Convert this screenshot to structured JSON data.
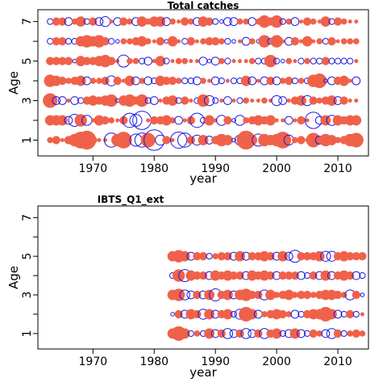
{
  "colors": {
    "positive": "#f0614a",
    "negative": "#1a1ae6",
    "frame": "#000000"
  },
  "chart_data": [
    {
      "type": "scatter",
      "title": "Total catches",
      "xlabel": "year",
      "ylabel": "Age",
      "xlim": [
        1961,
        2015
      ],
      "ylim": [
        0.2,
        7.6
      ],
      "xticks": [
        1970,
        1980,
        1990,
        2000,
        2010
      ],
      "xtick_labels": [
        "1970",
        "1980",
        "1990",
        "2000",
        "2010"
      ],
      "yticks": [
        1,
        2,
        3,
        4,
        5,
        6,
        7
      ],
      "ytick_labels": [
        "1",
        "",
        "3",
        "",
        "5",
        "",
        "7"
      ],
      "grid": false,
      "legend": "none",
      "years": [
        1963,
        1964,
        1965,
        1966,
        1967,
        1968,
        1969,
        1970,
        1971,
        1972,
        1973,
        1974,
        1975,
        1976,
        1977,
        1978,
        1979,
        1980,
        1981,
        1982,
        1983,
        1984,
        1985,
        1986,
        1987,
        1988,
        1989,
        1990,
        1991,
        1992,
        1993,
        1994,
        1995,
        1996,
        1997,
        1998,
        1999,
        2000,
        2001,
        2002,
        2003,
        2004,
        2005,
        2006,
        2007,
        2008,
        2009,
        2010,
        2011,
        2012,
        2013
      ],
      "ages": [
        1,
        2,
        3,
        4,
        5,
        6,
        7
      ],
      "residuals": [
        [
          2,
          3,
          1,
          3,
          5,
          7,
          8,
          3,
          1,
          1,
          -6,
          5,
          7,
          1,
          -5,
          -6,
          6,
          -9,
          -4,
          3,
          1,
          -7,
          -6,
          3,
          -4,
          4,
          -3,
          3,
          5,
          4,
          -1,
          -4,
          8,
          4,
          -5,
          5,
          4,
          5,
          7,
          -4,
          2,
          3,
          1,
          6,
          -3,
          5,
          4,
          2,
          3,
          5,
          6
        ],
        [
          4,
          4,
          4,
          -3,
          -5,
          5,
          -4,
          1,
          4,
          3,
          2,
          1,
          3,
          -6,
          -5,
          -8,
          1,
          3,
          3,
          4,
          2,
          -3,
          1,
          3,
          -6,
          -2,
          4,
          1,
          -4,
          3,
          -1,
          -4,
          2,
          3,
          4,
          3,
          4,
          1,
          1,
          -3,
          1,
          3,
          1,
          -7,
          -3,
          4,
          -4,
          4,
          3,
          4,
          4
        ],
        [
          6,
          -3,
          -3,
          1,
          -3,
          -2,
          3,
          4,
          3,
          4,
          5,
          -1,
          4,
          5,
          3,
          5,
          -2,
          -3,
          1,
          3,
          4,
          -2,
          3,
          1,
          -2,
          5,
          -4,
          -2,
          1,
          -3,
          1,
          -2,
          2,
          1,
          1,
          2,
          1,
          -4,
          -3,
          1,
          3,
          4,
          -4,
          3,
          2,
          3,
          4,
          -3,
          3,
          1,
          1
        ],
        [
          5,
          4,
          3,
          2,
          3,
          4,
          -3,
          2,
          2,
          3,
          -4,
          3,
          1,
          4,
          -3,
          2,
          -3,
          -2,
          4,
          3,
          3,
          2,
          -2,
          -2,
          -3,
          2,
          1,
          -3,
          -2,
          1,
          -2,
          -2,
          4,
          -3,
          1,
          -3,
          3,
          -3,
          2,
          3,
          -2,
          2,
          -2,
          5,
          6,
          -1,
          -3,
          3,
          4,
          1,
          -3
        ],
        [
          3,
          3,
          3,
          3,
          -1,
          4,
          3,
          3,
          4,
          5,
          3,
          1,
          -5,
          2,
          2,
          -2,
          -3,
          1,
          4,
          -2,
          1,
          2,
          2,
          1,
          1,
          -3,
          -1,
          -3,
          2,
          -2,
          1,
          1,
          1,
          2,
          -2,
          -2,
          5,
          -2,
          -1,
          2,
          1,
          -2,
          2,
          -2,
          -2,
          3,
          -2,
          -2,
          -2,
          -2,
          1
        ],
        [
          -2,
          3,
          3,
          -2,
          -2,
          4,
          5,
          4,
          5,
          3,
          -2,
          -1,
          2,
          2,
          3,
          4,
          2,
          1,
          3,
          -1,
          4,
          1,
          -2,
          3,
          1,
          2,
          3,
          3,
          2,
          -2,
          -1,
          1,
          -3,
          2,
          -1,
          5,
          -2,
          5,
          1,
          -3,
          3,
          1,
          4,
          1,
          2,
          -2,
          3,
          1,
          2,
          2,
          2
        ],
        [
          -2,
          3,
          3,
          -3,
          2,
          4,
          -2,
          3,
          -3,
          -4,
          1,
          -3,
          3,
          2,
          -3,
          4,
          2,
          4,
          4,
          -3,
          2,
          1,
          3,
          2,
          -3,
          4,
          3,
          -2,
          -1,
          -3,
          -3,
          2,
          2,
          -3,
          2,
          5,
          3,
          5,
          -2,
          2,
          -3,
          1,
          3,
          2,
          1,
          4,
          -2,
          3,
          2,
          1,
          1
        ]
      ]
    },
    {
      "type": "scatter",
      "title": "IBTS_Q1_ext",
      "xlabel": "year",
      "ylabel": "Age",
      "xlim": [
        1961,
        2015
      ],
      "ylim": [
        0.2,
        7.6
      ],
      "xticks": [
        1970,
        1980,
        1990,
        2000,
        2010
      ],
      "xtick_labels": [
        "1970",
        "1980",
        "1990",
        "2000",
        "2010"
      ],
      "yticks": [
        1,
        2,
        3,
        4,
        5,
        6,
        7
      ],
      "ytick_labels": [
        "1",
        "",
        "3",
        "",
        "5",
        "",
        "7"
      ],
      "grid": false,
      "legend": "none",
      "years": [
        1983,
        1984,
        1985,
        1986,
        1987,
        1988,
        1989,
        1990,
        1991,
        1992,
        1993,
        1994,
        1995,
        1996,
        1997,
        1998,
        1999,
        2000,
        2001,
        2002,
        2003,
        2004,
        2005,
        2006,
        2007,
        2008,
        2009,
        2010,
        2011,
        2012,
        2013,
        2014
      ],
      "ages": [
        1,
        2,
        3,
        4,
        5
      ],
      "residuals": [
        [
          4,
          6,
          4,
          -2,
          2,
          -2,
          4,
          -3,
          3,
          -4,
          -3,
          3,
          -4,
          -3,
          3,
          -4,
          3,
          4,
          -2,
          -3,
          4,
          -3,
          -2,
          3,
          2,
          -3,
          -4,
          3,
          -2,
          2,
          3,
          2
        ],
        [
          -1,
          3,
          -3,
          4,
          3,
          -4,
          4,
          -3,
          3,
          4,
          -2,
          -4,
          6,
          4,
          -3,
          2,
          3,
          4,
          3,
          2,
          -3,
          -2,
          3,
          4,
          4,
          6,
          4,
          -3,
          -2,
          3,
          -2,
          1
        ],
        [
          4,
          5,
          -4,
          -3,
          3,
          -3,
          4,
          -5,
          3,
          4,
          -3,
          4,
          5,
          3,
          3,
          -4,
          4,
          2,
          3,
          4,
          2,
          3,
          3,
          2,
          3,
          4,
          4,
          3,
          2,
          -4,
          3,
          -1
        ],
        [
          -2,
          5,
          -5,
          4,
          3,
          3,
          -3,
          4,
          3,
          4,
          3,
          3,
          -3,
          4,
          3,
          4,
          3,
          -3,
          3,
          3,
          3,
          -3,
          -2,
          3,
          -3,
          4,
          -3,
          3,
          4,
          3,
          -3,
          -2
        ],
        [
          4,
          5,
          4,
          -3,
          3,
          3,
          -2,
          2,
          3,
          3,
          -3,
          4,
          -3,
          3,
          3,
          4,
          3,
          -3,
          4,
          -3,
          -5,
          3,
          3,
          3,
          4,
          -4,
          -4,
          3,
          4,
          3,
          3,
          3
        ]
      ]
    }
  ]
}
